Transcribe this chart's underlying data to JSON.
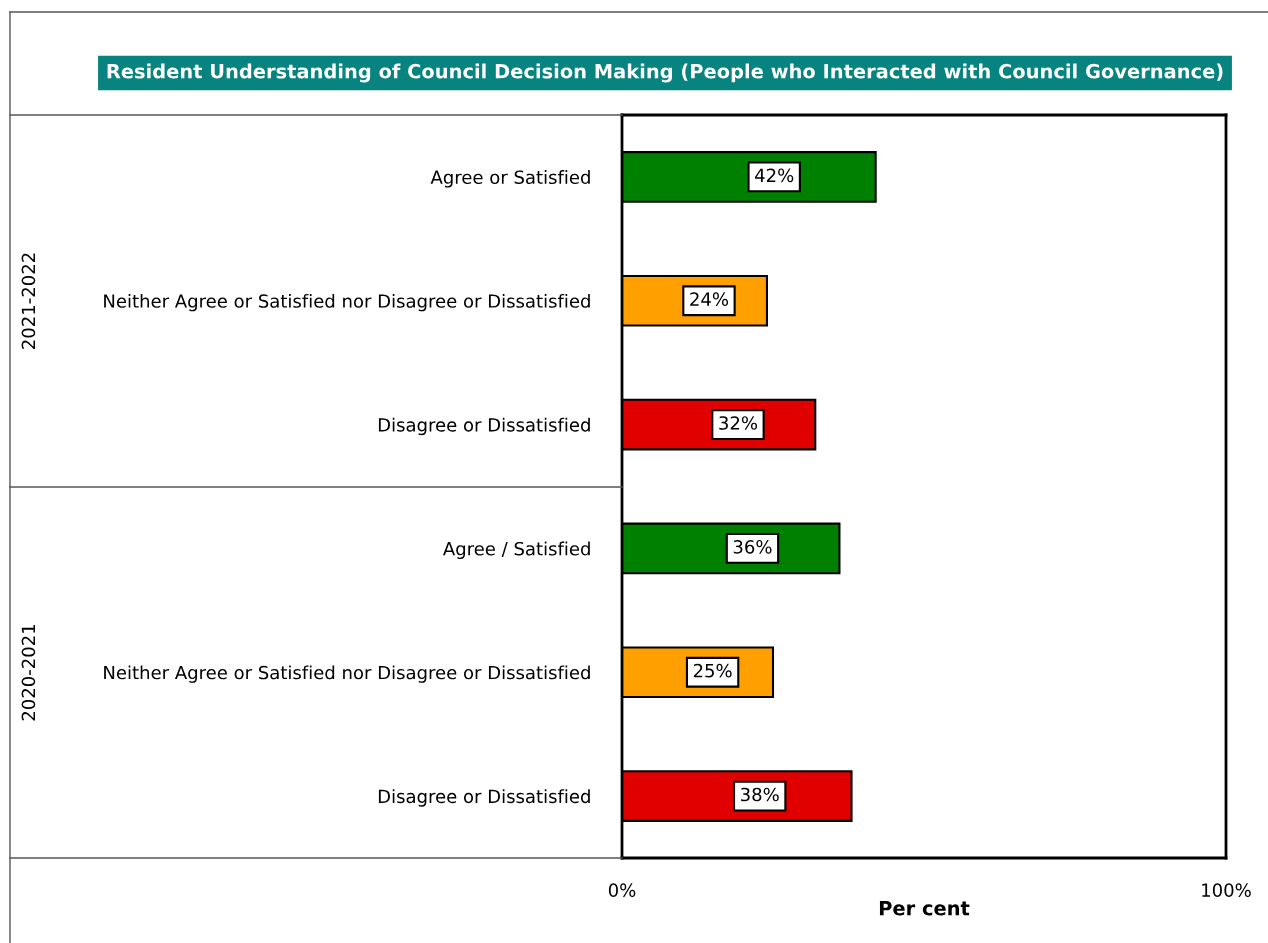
{
  "chart_data": {
    "type": "bar",
    "orientation": "horizontal",
    "title": "Resident Understanding of Council Decision Making (People who Interacted with Council Governance)",
    "xlabel": "Per cent",
    "categories": [
      "Agree or Satisfied",
      "Neither Agree or Satisfied nor Disagree or Dissatisfied",
      "Disagree or Dissatisfied",
      "Agree / Satisfied",
      "Neither Agree or Satisfied nor Disagree or Dissatisfied",
      "Disagree or Dissatisfied"
    ],
    "values": [
      42,
      24,
      32,
      36,
      25,
      38
    ],
    "value_labels": [
      "42%",
      "24%",
      "32%",
      "36%",
      "25%",
      "38%"
    ],
    "colors": [
      "#008000",
      "#ffa000",
      "#e00000",
      "#008000",
      "#ffa000",
      "#e00000"
    ],
    "annotations": [
      "2021-2022",
      "2020-2021"
    ],
    "xlim": [
      0,
      100
    ],
    "xticks": [
      {
        "value": 0,
        "label": "0%"
      },
      {
        "value": 100,
        "label": "100%"
      }
    ],
    "grid": false,
    "legend": false
  }
}
